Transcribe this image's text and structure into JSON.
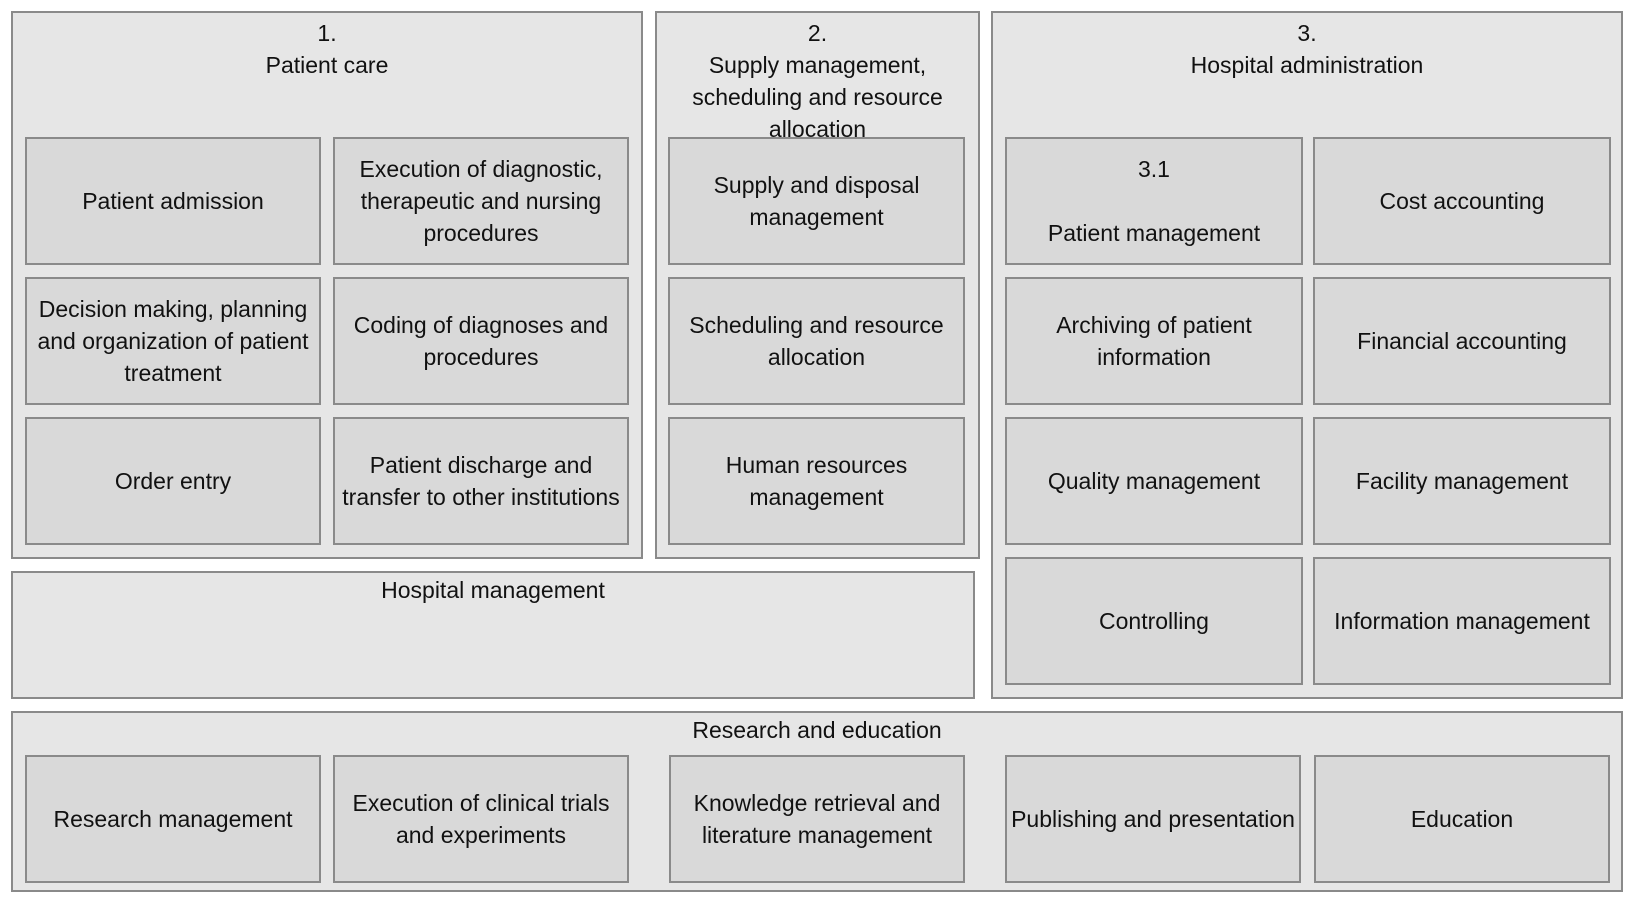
{
  "patient_care": {
    "number": "1.",
    "title": "Patient care",
    "items": [
      "Patient admission",
      "Execution of diagnostic, therapeutic and nursing procedures",
      "Decision making, planning and organization of patient treatment",
      "Coding of diagnoses and procedures",
      "Order entry",
      "Patient discharge and transfer to other institutions"
    ]
  },
  "supply": {
    "number": "2.",
    "title": "Supply management, scheduling and resource allocation",
    "items": [
      "Supply and disposal management",
      "Scheduling and resource allocation",
      "Human resources management"
    ]
  },
  "administration": {
    "number": "3.",
    "title": "Hospital administration",
    "patient_mgmt_number": "3.1",
    "patient_mgmt_label": "Patient management",
    "items": [
      "Cost accounting",
      "Archiving of patient information",
      "Financial accounting",
      "Quality management",
      "Facility management",
      "Controlling",
      "Information management"
    ]
  },
  "hospital_management": {
    "title": "Hospital management"
  },
  "research": {
    "title": "Research and education",
    "items": [
      "Research management",
      "Execution of clinical trials and experiments",
      "Knowledge retrieval and literature management",
      "Publishing and presentation",
      "Education"
    ]
  }
}
